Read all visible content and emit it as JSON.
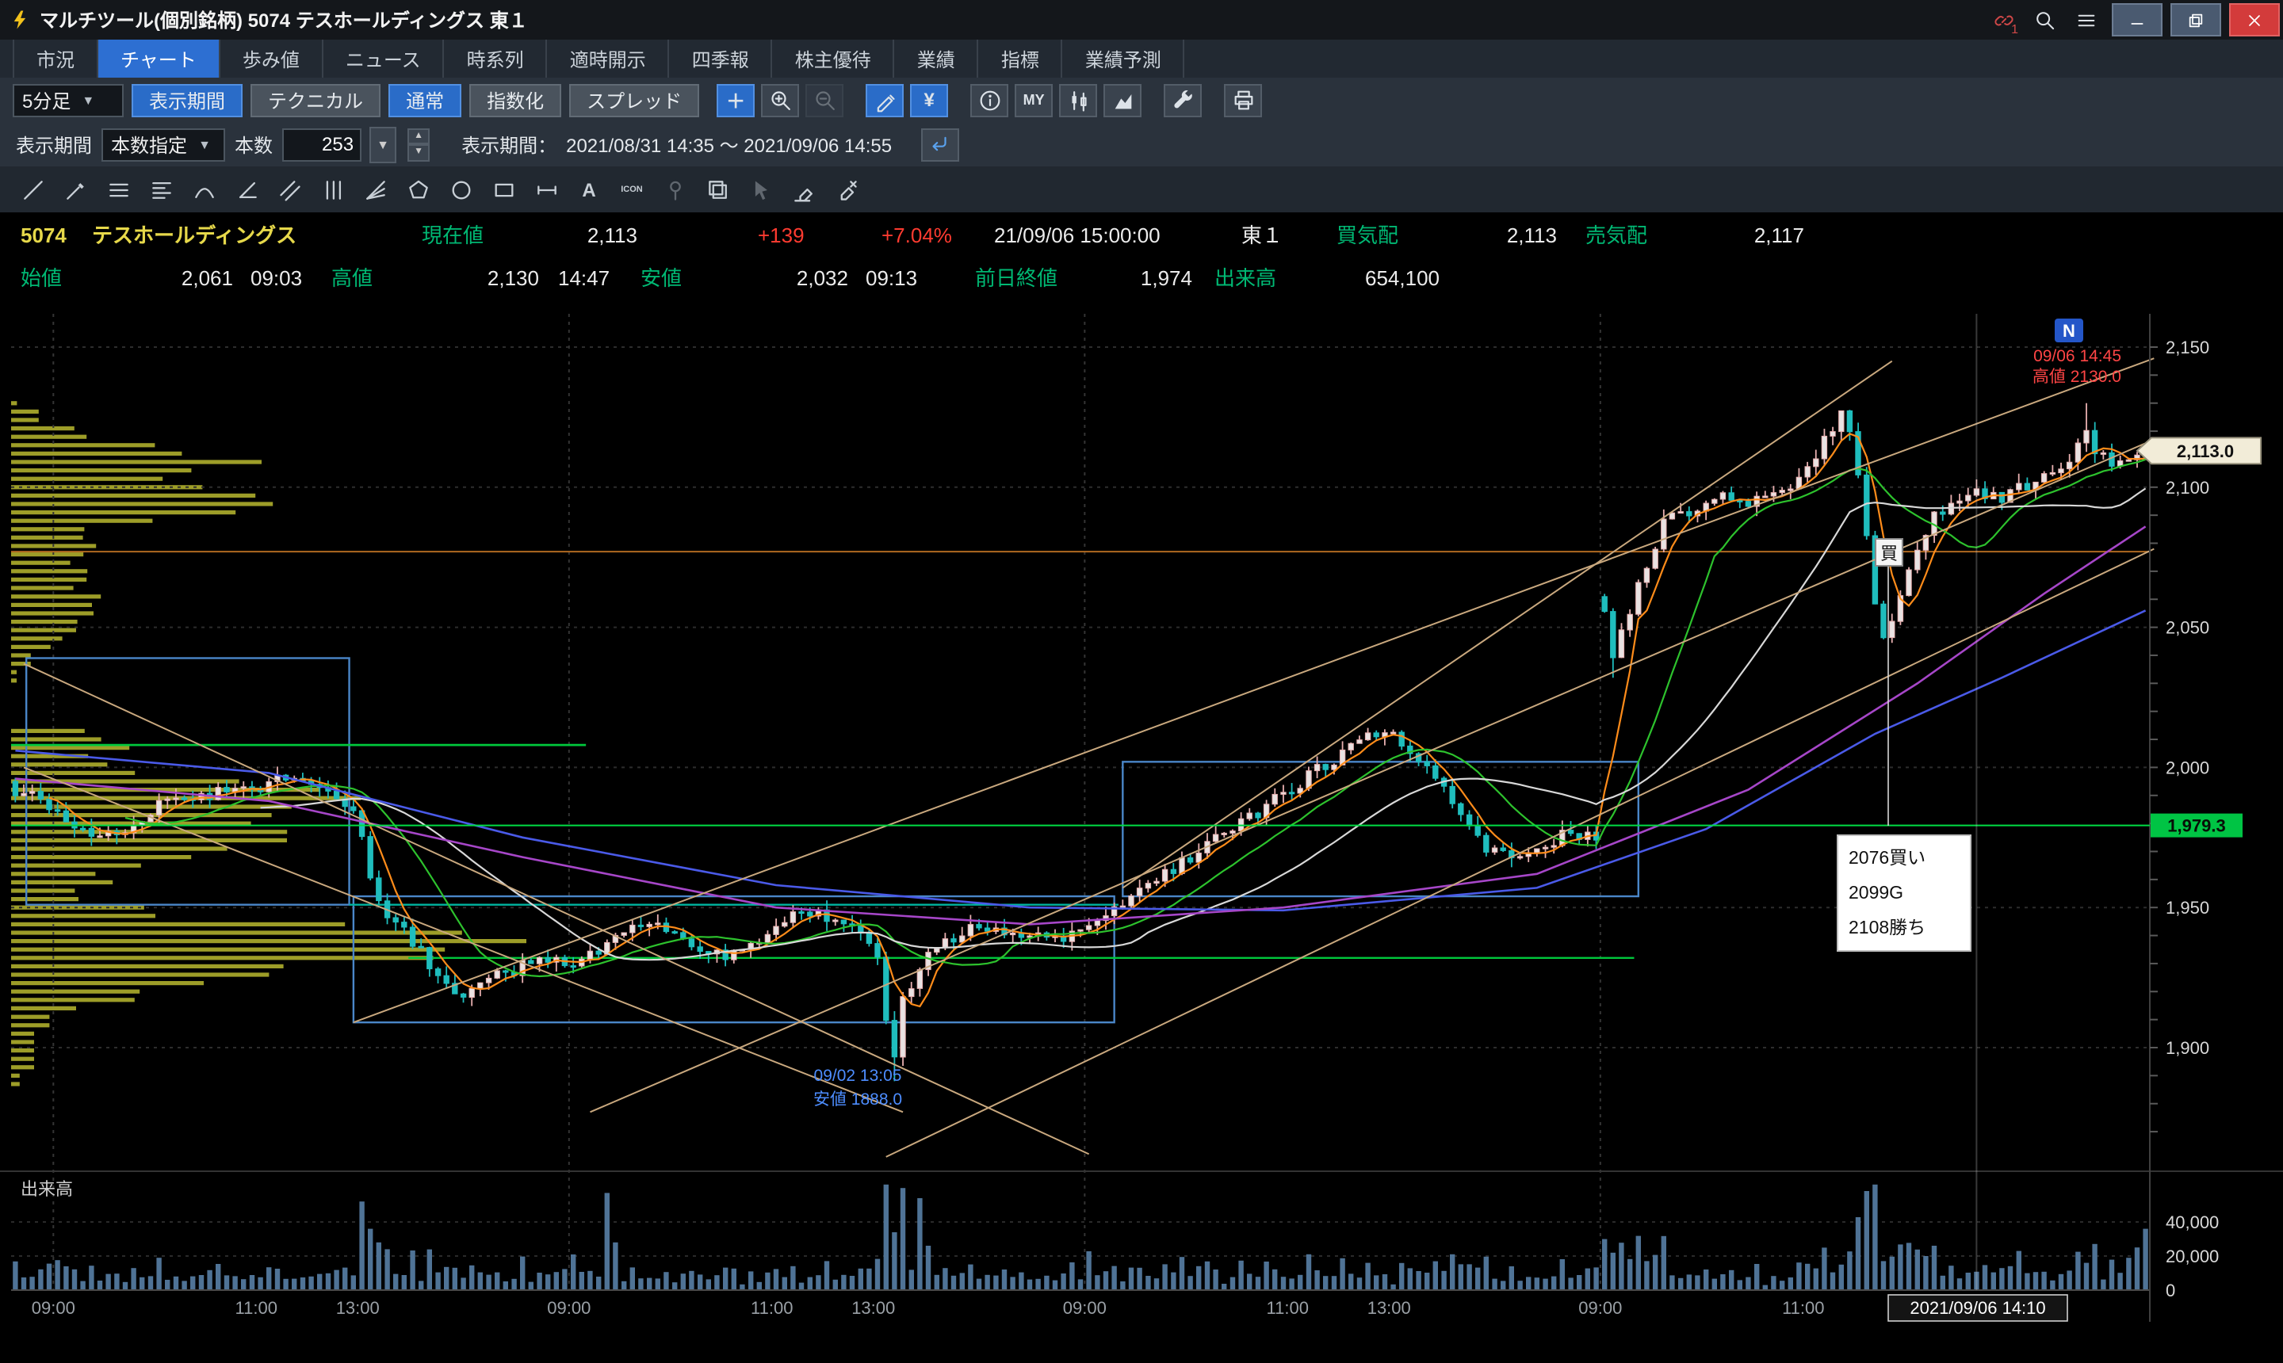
{
  "window": {
    "title": "マルチツール(個別銘柄) 5074 テスホールディングス 東１",
    "link_count": "1"
  },
  "ui": {
    "caret": "▼",
    "spin_up": "▲",
    "spin_down": "▼"
  },
  "tabs": {
    "items": [
      {
        "label": "市況"
      },
      {
        "label": "チャート",
        "active": true
      },
      {
        "label": "歩み値"
      },
      {
        "label": "ニュース"
      },
      {
        "label": "時系列"
      },
      {
        "label": "適時開示"
      },
      {
        "label": "四季報"
      },
      {
        "label": "株主優待"
      },
      {
        "label": "業績"
      },
      {
        "label": "指標"
      },
      {
        "label": "業績予測"
      }
    ]
  },
  "toolbar": {
    "interval": "5分足",
    "period_btn": "表示期間",
    "technical_btn": "テクニカル",
    "normal_btn": "通常",
    "index_btn": "指数化",
    "spread_btn": "スプレッド",
    "icons": [
      {
        "name": "add",
        "glyph": "＋",
        "active": true
      },
      {
        "name": "zoom-in"
      },
      {
        "name": "zoom-out",
        "disabled": true
      },
      {
        "name": "draw",
        "active": true,
        "gap": true
      },
      {
        "name": "yen",
        "glyph": "¥",
        "active": true
      },
      {
        "name": "info",
        "gap": true
      },
      {
        "name": "my-list",
        "glyph": "MY"
      },
      {
        "name": "chart-type-candle"
      },
      {
        "name": "chart-type-area"
      },
      {
        "name": "settings",
        "gap": true
      },
      {
        "name": "print",
        "gap": true
      }
    ]
  },
  "period": {
    "label": "表示期間",
    "mode": "本数指定",
    "count_label": "本数",
    "count": "253",
    "range_label": "表示期間：",
    "range": "2021/08/31 14:35 ～ 2021/09/06 14:55"
  },
  "draw_tools": [
    {
      "name": "trend-line"
    },
    {
      "name": "pen"
    },
    {
      "name": "horizontal-lines"
    },
    {
      "name": "fibonacci"
    },
    {
      "name": "arc"
    },
    {
      "name": "angle"
    },
    {
      "name": "channel"
    },
    {
      "name": "vertical-lines"
    },
    {
      "name": "fan"
    },
    {
      "name": "polygon"
    },
    {
      "name": "ellipse"
    },
    {
      "name": "rectangle"
    },
    {
      "name": "horizontal-segment"
    },
    {
      "name": "text",
      "glyph": "A"
    },
    {
      "name": "icon-stamp",
      "glyph": "ICON"
    },
    {
      "name": "pin",
      "disabled": true
    },
    {
      "name": "copy"
    },
    {
      "name": "select",
      "disabled": true
    },
    {
      "name": "eraser"
    },
    {
      "name": "clear-all"
    }
  ],
  "quote": {
    "code": "5074",
    "name": "テスホールディングス",
    "cur_label": "現在値",
    "cur": "2,113",
    "chg": "+139",
    "chg_pct": "+7.04%",
    "time": "21/09/06 15:00:00",
    "market": "東１",
    "bid_label": "買気配",
    "bid": "2,113",
    "ask_label": "売気配",
    "ask": "2,117",
    "open_label": "始値",
    "open": "2,061",
    "open_time": "09:03",
    "high_label": "高値",
    "high": "2,130",
    "high_time": "14:47",
    "low_label": "安値",
    "low": "2,032",
    "low_time": "09:13",
    "prev_label": "前日終値",
    "prev": "1,974",
    "vol_label": "出来高",
    "vol": "654,100"
  },
  "chart_data": {
    "type": "candlestick",
    "symbol": "5074 テスホールディングス",
    "interval": "5分足",
    "bar_count": 253,
    "y_axis": {
      "min": 1861,
      "max": 2160,
      "labels": [
        {
          "p": 2150,
          "t": "2,150"
        },
        {
          "p": 2100,
          "t": "2,100"
        },
        {
          "p": 2050,
          "t": "2,050"
        },
        {
          "p": 2000,
          "t": "2,000"
        },
        {
          "p": 1950,
          "t": "1,950"
        },
        {
          "p": 1900,
          "t": "1,900"
        }
      ]
    },
    "x_labels": [
      {
        "t": "09:00",
        "bar": 5
      },
      {
        "t": "11:00",
        "bar": 29
      },
      {
        "t": "13:00",
        "bar": 41
      },
      {
        "t": "09:00",
        "bar": 66
      },
      {
        "t": "11:00",
        "bar": 90
      },
      {
        "t": "13:00",
        "bar": 102
      },
      {
        "t": "09:00",
        "bar": 127
      },
      {
        "t": "11:00",
        "bar": 151
      },
      {
        "t": "13:00",
        "bar": 163
      },
      {
        "t": "09:00",
        "bar": 188
      },
      {
        "t": "11:00",
        "bar": 212
      }
    ],
    "day_start_bars": [
      5,
      66,
      127,
      188
    ],
    "anchors": [
      [
        0,
        1992
      ],
      [
        4,
        1987
      ],
      [
        5,
        1985
      ],
      [
        9,
        1973
      ],
      [
        14,
        1980
      ],
      [
        18,
        1989
      ],
      [
        24,
        1991
      ],
      [
        30,
        1994
      ],
      [
        33,
        1998
      ],
      [
        37,
        1991
      ],
      [
        40,
        1986
      ],
      [
        41,
        1974
      ],
      [
        42,
        1960
      ],
      [
        44,
        1946
      ],
      [
        47,
        1938
      ],
      [
        50,
        1926
      ],
      [
        53,
        1918
      ],
      [
        56,
        1924
      ],
      [
        60,
        1929
      ],
      [
        65,
        1931
      ],
      [
        66,
        1928
      ],
      [
        70,
        1937
      ],
      [
        74,
        1944
      ],
      [
        79,
        1939
      ],
      [
        84,
        1931
      ],
      [
        89,
        1942
      ],
      [
        94,
        1949
      ],
      [
        99,
        1944
      ],
      [
        102,
        1932
      ],
      [
        103,
        1912
      ],
      [
        104,
        1897
      ],
      [
        105,
        1916
      ],
      [
        107,
        1929
      ],
      [
        110,
        1937
      ],
      [
        114,
        1944
      ],
      [
        119,
        1941
      ],
      [
        123,
        1938
      ],
      [
        126,
        1940
      ],
      [
        127,
        1943
      ],
      [
        131,
        1950
      ],
      [
        136,
        1962
      ],
      [
        141,
        1972
      ],
      [
        146,
        1982
      ],
      [
        151,
        1992
      ],
      [
        156,
        2003
      ],
      [
        159,
        2011
      ],
      [
        162,
        2013
      ],
      [
        165,
        2007
      ],
      [
        168,
        1998
      ],
      [
        171,
        1984
      ],
      [
        174,
        1972
      ],
      [
        177,
        1966
      ],
      [
        180,
        1971
      ],
      [
        183,
        1976
      ],
      [
        186,
        1976
      ],
      [
        187,
        1974
      ],
      [
        188,
        2057
      ],
      [
        189,
        2038
      ],
      [
        190,
        2047
      ],
      [
        192,
        2066
      ],
      [
        194,
        2080
      ],
      [
        196,
        2093
      ],
      [
        199,
        2089
      ],
      [
        202,
        2098
      ],
      [
        205,
        2094
      ],
      [
        208,
        2097
      ],
      [
        211,
        2103
      ],
      [
        213,
        2110
      ],
      [
        215,
        2122
      ],
      [
        216,
        2126
      ],
      [
        217,
        2118
      ],
      [
        218,
        2102
      ],
      [
        219,
        2083
      ],
      [
        220,
        2058
      ],
      [
        221,
        2044
      ],
      [
        222,
        2052
      ],
      [
        223,
        2063
      ],
      [
        225,
        2078
      ],
      [
        227,
        2090
      ],
      [
        229,
        2094
      ],
      [
        232,
        2099
      ],
      [
        235,
        2097
      ],
      [
        238,
        2100
      ],
      [
        241,
        2104
      ],
      [
        243,
        2108
      ],
      [
        245,
        2120
      ],
      [
        246,
        2113
      ],
      [
        248,
        2110
      ],
      [
        250,
        2112
      ],
      [
        252,
        2113
      ]
    ],
    "forced": {
      "104": {
        "low": 1888
      },
      "187": {
        "close": 1974
      },
      "188": {
        "open": 2061
      },
      "189": {
        "low": 2032
      },
      "216": {
        "high": 2127
      },
      "245": {
        "high": 2130
      },
      "252": {
        "close": 2113
      }
    },
    "vol_spikes": {
      "41": 52000,
      "42": 36000,
      "43": 28000,
      "44": 24000,
      "70": 57000,
      "71": 28000,
      "104": 34000,
      "107": 54000,
      "108": 26000,
      "160": 16000,
      "188": 30000,
      "189": 22000,
      "216": 15000,
      "221": 17000,
      "226": 20000,
      "237": 23000,
      "245": 16000,
      "250": 19000,
      "251": 25000,
      "252": 36000
    },
    "volume_axis": [
      {
        "v": 40000,
        "t": "40,000"
      },
      {
        "v": 20000,
        "t": "20,000"
      },
      {
        "v": 0,
        "t": "0"
      }
    ],
    "volume_pane_label": "出来高",
    "ma": [
      {
        "window": 5,
        "color": "#ff8c1a"
      },
      {
        "window": 14,
        "color": "#2dc22d"
      },
      {
        "window": 30,
        "color": "#d8d8d8"
      }
    ],
    "aux_lines": [
      {
        "color": "#4a5ae8",
        "pts": [
          [
            0,
            2006
          ],
          [
            30,
            1998
          ],
          [
            60,
            1975
          ],
          [
            90,
            1958
          ],
          [
            120,
            1950
          ],
          [
            150,
            1949
          ],
          [
            180,
            1957
          ],
          [
            200,
            1978
          ],
          [
            220,
            2012
          ],
          [
            235,
            2032
          ],
          [
            252,
            2056
          ]
        ]
      },
      {
        "color": "#a646c8",
        "pts": [
          [
            0,
            1996
          ],
          [
            30,
            1988
          ],
          [
            60,
            1968
          ],
          [
            90,
            1950
          ],
          [
            120,
            1944
          ],
          [
            150,
            1950
          ],
          [
            180,
            1962
          ],
          [
            205,
            1992
          ],
          [
            225,
            2030
          ],
          [
            240,
            2062
          ],
          [
            252,
            2086
          ]
        ]
      }
    ],
    "trendlines": [
      {
        "b1": 1,
        "p1": 2037,
        "b2": 127,
        "p2": 1862
      },
      {
        "b1": 1,
        "p1": 2000,
        "b2": 105,
        "p2": 1877
      },
      {
        "b1": 40,
        "p1": 1909,
        "b2": 253,
        "p2": 2146
      },
      {
        "b1": 68,
        "p1": 1877,
        "b2": 253,
        "p2": 2117
      },
      {
        "b1": 103,
        "p1": 1861,
        "b2": 253,
        "p2": 2078
      },
      {
        "b1": 131,
        "p1": 1957,
        "b2": 222,
        "p2": 2145
      }
    ],
    "hlines": [
      {
        "price": 2077,
        "b1": 0,
        "b2": 253,
        "color": "#b06a20",
        "w": 1
      },
      {
        "price": 2008,
        "b1": 0,
        "b2": 68,
        "color": "#00c83c",
        "w": 1.4
      },
      {
        "price": 1932,
        "b1": 47,
        "b2": 192,
        "color": "#00c83c",
        "w": 1.2
      },
      {
        "price": 1951,
        "b1": 40,
        "b2": 131,
        "color": "#00b4a0",
        "w": 1.2
      },
      {
        "price": 1979.3,
        "b1": 0,
        "b2": 253,
        "color": "#00dd44",
        "w": 1,
        "top": true
      }
    ],
    "boxes": {
      "color": "#4a86c8",
      "items": [
        {
          "b1": 1.3,
          "b2": 39.5,
          "p1": 2039,
          "p2": 1951
        },
        {
          "b1": 40,
          "b2": 130,
          "p1": 1954,
          "p2": 1909
        },
        {
          "b1": 131,
          "b2": 192,
          "p1": 2002,
          "p2": 1954
        }
      ]
    },
    "colors": {
      "up": "#e9e2e2",
      "up_stroke": "#e8b0b0",
      "down": "#1fbdbd",
      "volume": "#4f7396",
      "profile": "#b3b32e",
      "grid": "#2d2d2d"
    },
    "last_price": 2113,
    "annotations": {
      "n_badge": "N",
      "high_note": {
        "lines": [
          "09/06 14:45",
          "高値 2130.0"
        ],
        "color": "#ff4545"
      },
      "low_note": {
        "lines": [
          "09/02 13:05",
          "安値 1888.0"
        ],
        "color": "#4d8dff"
      },
      "note_box": [
        "2076買い",
        "2099G",
        "2108勝ち"
      ],
      "buy_marker": "買",
      "price_tag": "2,113.0",
      "cross_price": 1979.3,
      "cross_price_tag": "1,979.3",
      "cross_time": "2021/09/06 14:10",
      "cross_bar": 232
    }
  }
}
